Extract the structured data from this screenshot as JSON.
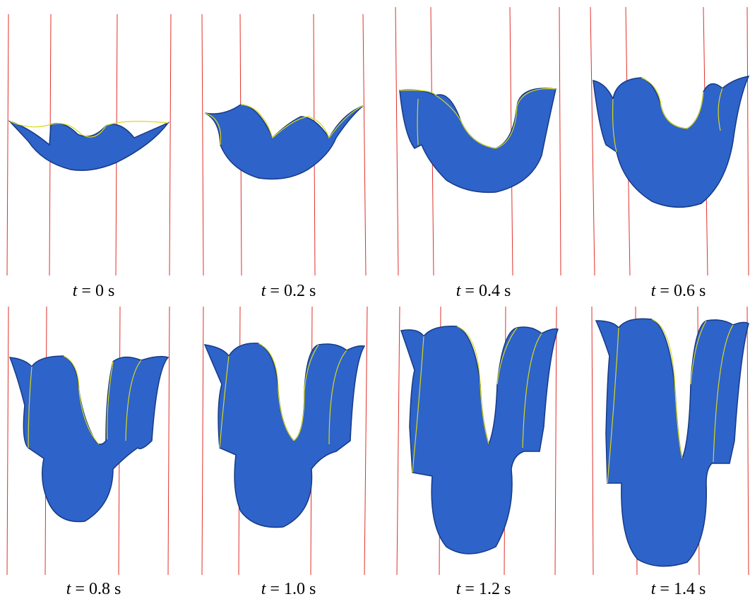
{
  "panels": [
    {
      "time": "0",
      "unit": "s",
      "var": "t",
      "eq": "="
    },
    {
      "time": "0.2",
      "unit": "s",
      "var": "t",
      "eq": "="
    },
    {
      "time": "0.4",
      "unit": "s",
      "var": "t",
      "eq": "="
    },
    {
      "time": "0.6",
      "unit": "s",
      "var": "t",
      "eq": "="
    },
    {
      "time": "0.8",
      "unit": "s",
      "var": "t",
      "eq": "="
    },
    {
      "time": "1.0",
      "unit": "s",
      "var": "t",
      "eq": "="
    },
    {
      "time": "1.2",
      "unit": "s",
      "var": "t",
      "eq": "="
    },
    {
      "time": "1.4",
      "unit": "s",
      "var": "t",
      "eq": "="
    }
  ],
  "colors": {
    "shell": "#2e63c9",
    "shell_dark": "#1a3f8f",
    "rim": "#d8d81a",
    "guide": "#e0302a"
  }
}
